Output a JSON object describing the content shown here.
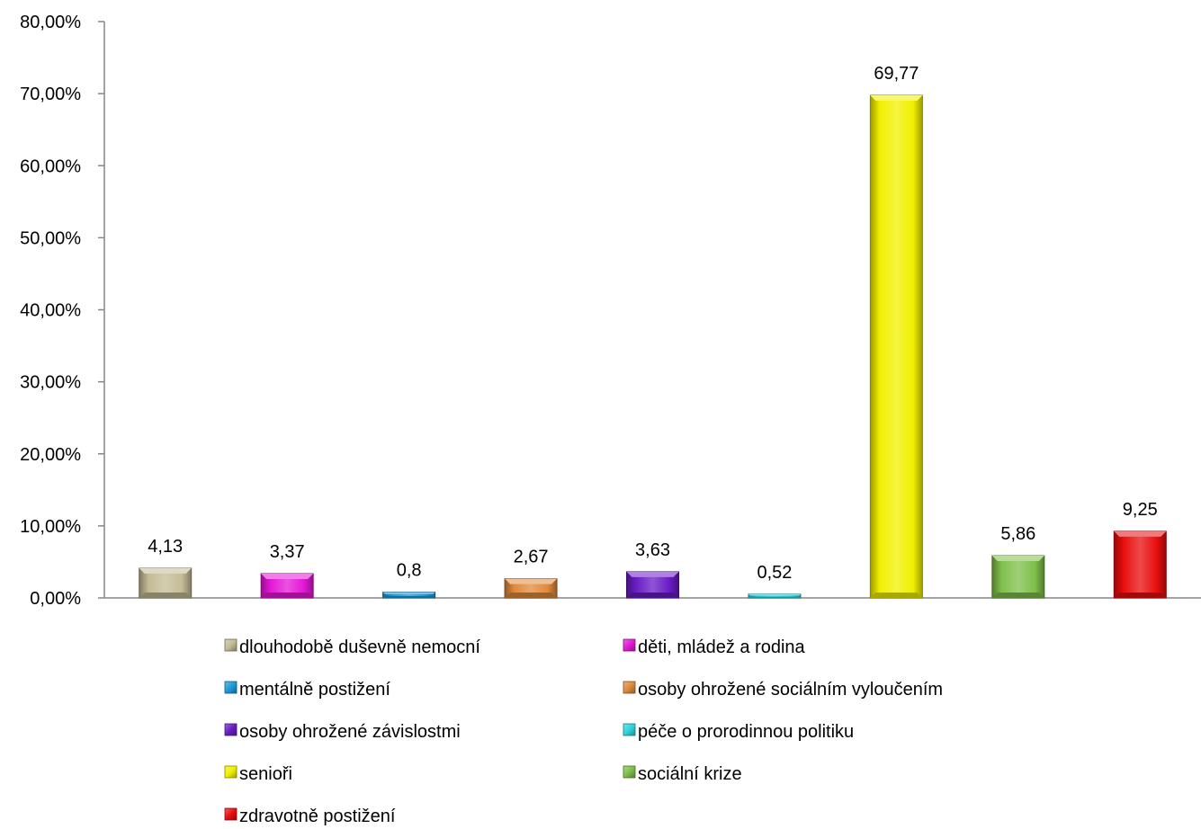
{
  "chart_data": {
    "type": "bar",
    "title": "",
    "xlabel": "",
    "ylabel": "",
    "ylim": [
      0,
      80
    ],
    "y_ticks": [
      "0,00%",
      "10,00%",
      "20,00%",
      "30,00%",
      "40,00%",
      "50,00%",
      "60,00%",
      "70,00%",
      "80,00%"
    ],
    "y_tick_values": [
      0,
      10,
      20,
      30,
      40,
      50,
      60,
      70,
      80
    ],
    "grid": false,
    "legend_position": "bottom",
    "series": [
      {
        "name": "dlouhodobě duševně nemocní",
        "value": 4.13,
        "label": "4,13",
        "color": "#c4bc96"
      },
      {
        "name": "děti, mládež a rodina",
        "value": 3.37,
        "label": "3,37",
        "color": "#e418d6"
      },
      {
        "name": "mentálně postižení",
        "value": 0.8,
        "label": "0,8",
        "color": "#1f9bd7"
      },
      {
        "name": "osoby ohrožené sociálním vyloučením",
        "value": 2.67,
        "label": "2,67",
        "color": "#e08a3c"
      },
      {
        "name": "osoby ohrožené závislostmi",
        "value": 3.63,
        "label": "3,63",
        "color": "#6a1cc4"
      },
      {
        "name": "péče o prorodinnou politiku",
        "value": 0.52,
        "label": "0,52",
        "color": "#2ad6e0"
      },
      {
        "name": "senioři",
        "value": 69.77,
        "label": "69,77",
        "color": "#f2f000"
      },
      {
        "name": "sociální krize",
        "value": 5.86,
        "label": "5,86",
        "color": "#7fbf4a"
      },
      {
        "name": "zdravotně postižení",
        "value": 9.25,
        "label": "9,25",
        "color": "#e80e0e"
      }
    ]
  }
}
